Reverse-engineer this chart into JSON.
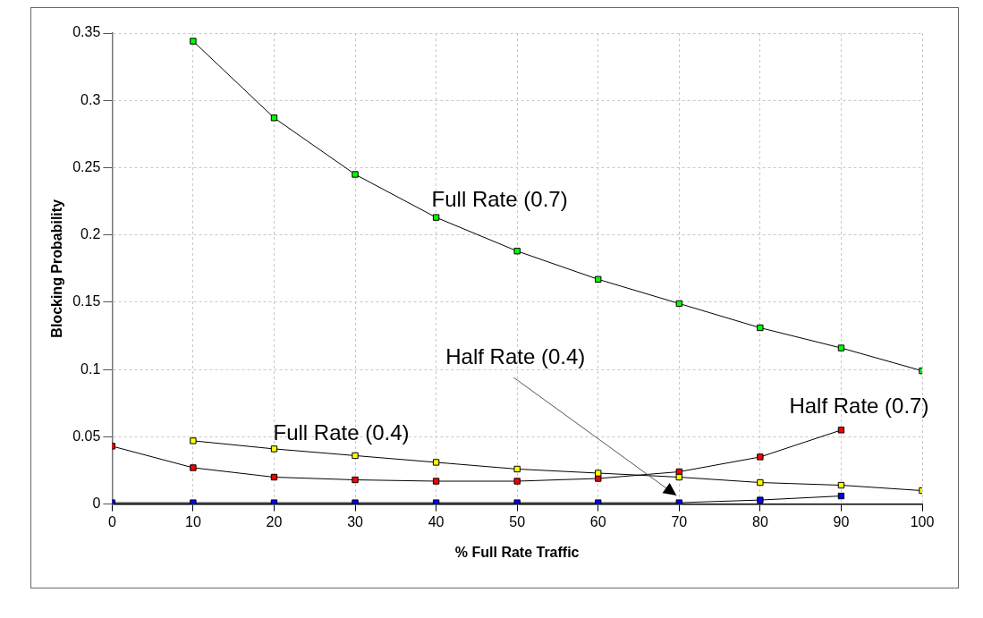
{
  "chart_data": {
    "type": "line",
    "xlabel": "% Full Rate Traffic",
    "ylabel": "Blocking Probability",
    "xlim": [
      0,
      100
    ],
    "xticks": [
      0,
      10,
      20,
      30,
      40,
      50,
      60,
      70,
      80,
      90,
      100
    ],
    "ylim": [
      0,
      0.35
    ],
    "yticks": [
      0,
      0.05,
      0.1,
      0.15,
      0.2,
      0.25,
      0.3,
      0.35
    ],
    "grid": true,
    "legend": false,
    "marker": "square",
    "line_style": "solid",
    "series": [
      {
        "name": "Full Rate (0.7)",
        "color": "#00ff00",
        "x": [
          10,
          20,
          30,
          40,
          50,
          60,
          70,
          80,
          90,
          100
        ],
        "values": [
          0.344,
          0.287,
          0.245,
          0.213,
          0.188,
          0.167,
          0.149,
          0.131,
          0.116,
          0.099
        ]
      },
      {
        "name": "Full Rate (0.4)",
        "color": "#ffff00",
        "x": [
          10,
          20,
          30,
          40,
          50,
          60,
          70,
          80,
          90,
          100
        ],
        "values": [
          0.047,
          0.041,
          0.036,
          0.031,
          0.026,
          0.023,
          0.02,
          0.016,
          0.014,
          0.01
        ]
      },
      {
        "name": "Half Rate (0.7)",
        "color": "#ff0000",
        "x": [
          0,
          10,
          20,
          30,
          40,
          50,
          60,
          70,
          80,
          90
        ],
        "values": [
          0.043,
          0.027,
          0.02,
          0.018,
          0.017,
          0.017,
          0.019,
          0.024,
          0.035,
          0.055
        ]
      },
      {
        "name": "Half Rate (0.4)",
        "color": "#0000ff",
        "x": [
          0,
          10,
          20,
          30,
          40,
          50,
          60,
          70,
          80,
          90
        ],
        "values": [
          0.001,
          0.001,
          0.001,
          0.001,
          0.001,
          0.001,
          0.001,
          0.001,
          0.003,
          0.006
        ]
      }
    ]
  }
}
